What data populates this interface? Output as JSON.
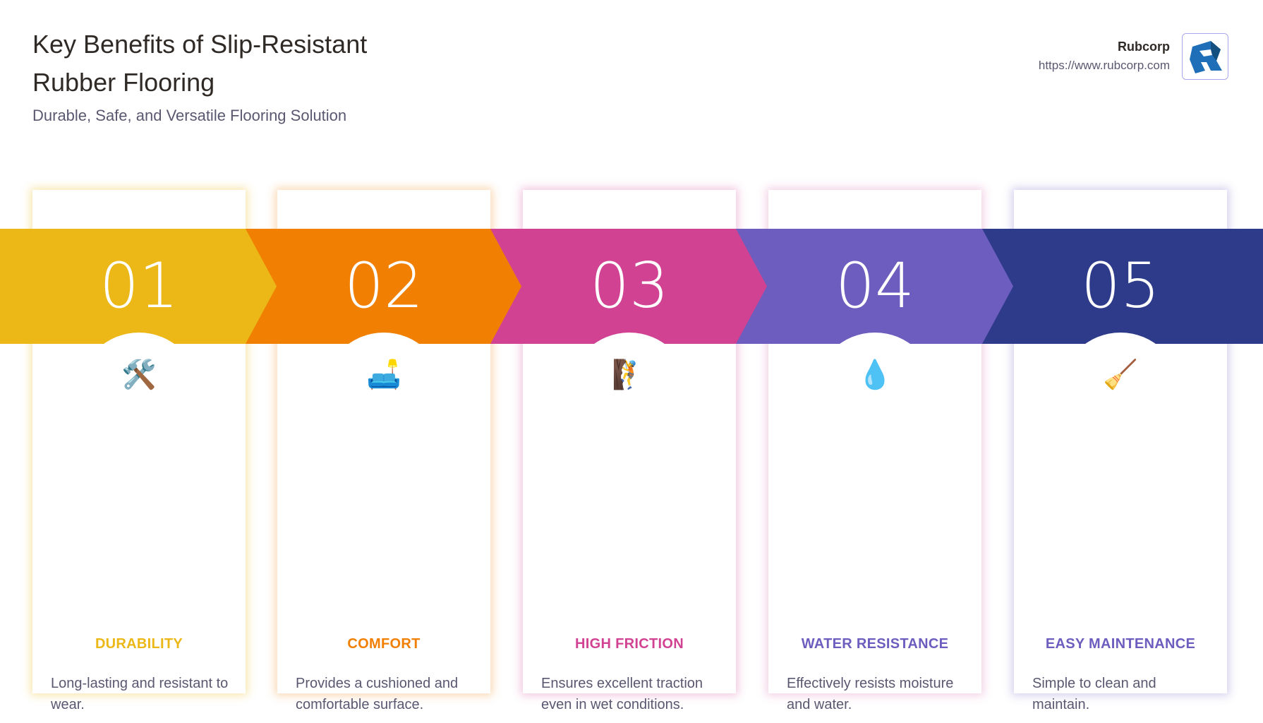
{
  "header": {
    "title": "Key Benefits of Slip-Resistant Rubber Flooring",
    "subtitle": "Durable, Safe, and Versatile Flooring Solution"
  },
  "brand": {
    "name": "Rubcorp",
    "url": "https://www.rubcorp.com",
    "logo_letter": "R"
  },
  "steps": [
    {
      "number": "01",
      "heading": "DURABILITY",
      "description": "Long-lasting and resistant to wear.",
      "icon": "hammer-and-wrench-icon",
      "glyph": "🛠️",
      "color": "#EBB817",
      "heading_color": "#EBB817"
    },
    {
      "number": "02",
      "heading": "COMFORT",
      "description": "Provides a cushioned and comfortable surface.",
      "icon": "couch-and-lamp-icon",
      "glyph": "🛋️",
      "color": "#F07F02",
      "heading_color": "#F07F02"
    },
    {
      "number": "03",
      "heading": "HIGH FRICTION",
      "description": "Ensures excellent traction even in wet conditions.",
      "icon": "person-climbing-icon",
      "glyph": "🧗",
      "color": "#D14392",
      "heading_color": "#D14392"
    },
    {
      "number": "04",
      "heading": "WATER RESISTANCE",
      "description": "Effectively resists moisture and water.",
      "icon": "droplet-icon",
      "glyph": "💧",
      "color": "#6C5DBE",
      "heading_color": "#6C5DBE"
    },
    {
      "number": "05",
      "heading": "EASY MAINTENANCE",
      "description": "Simple to clean and maintain.",
      "icon": "broom-icon",
      "glyph": "🧹",
      "color": "#2E3B8A",
      "heading_color": "#6C5DBE"
    }
  ]
}
